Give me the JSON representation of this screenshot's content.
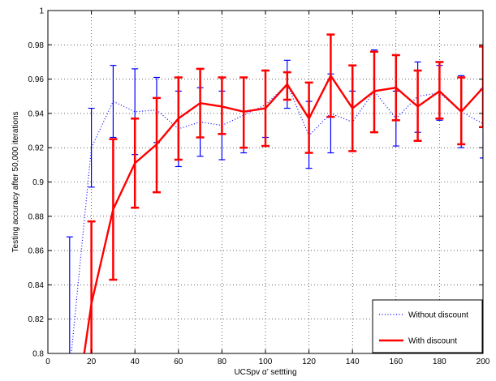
{
  "chart_data": {
    "type": "line",
    "title": "",
    "xlabel": "UCSpv α’ settting",
    "ylabel": "Testing accuracy after 50,000 iterations",
    "xlim": [
      0,
      200
    ],
    "ylim": [
      0.8,
      1.0
    ],
    "xticks": [
      0,
      20,
      40,
      60,
      80,
      100,
      120,
      140,
      160,
      180,
      200
    ],
    "yticks": [
      0.8,
      0.82,
      0.84,
      0.86,
      0.88,
      0.9,
      0.92,
      0.94,
      0.96,
      0.98,
      1.0
    ],
    "ytick_labels": [
      "0.8",
      "0.82",
      "0.84",
      "0.86",
      "0.88",
      "0.9",
      "0.92",
      "0.94",
      "0.96",
      "0.98",
      "1"
    ],
    "grid": true,
    "legend_position": "bottom-right",
    "series": [
      {
        "name": "Without discount",
        "color": "#0000ff",
        "style": "dotted",
        "x": [
          10,
          20,
          30,
          40,
          50,
          60,
          70,
          80,
          90,
          100,
          110,
          120,
          130,
          140,
          150,
          160,
          170,
          180,
          190,
          200
        ],
        "y": [
          0.79,
          0.92,
          0.947,
          0.941,
          0.942,
          0.931,
          0.935,
          0.933,
          0.939,
          0.945,
          0.957,
          0.927,
          0.94,
          0.935,
          0.953,
          0.937,
          0.95,
          0.952,
          0.941,
          0.934
        ],
        "lower": [
          0.79,
          0.897,
          0.926,
          0.916,
          0.923,
          0.909,
          0.915,
          0.913,
          0.917,
          0.926,
          0.943,
          0.908,
          0.917,
          0.918,
          0.929,
          0.921,
          0.929,
          0.936,
          0.92,
          0.914
        ],
        "upper": [
          0.868,
          0.943,
          0.968,
          0.966,
          0.961,
          0.953,
          0.955,
          0.953,
          0.961,
          0.965,
          0.971,
          0.947,
          0.963,
          0.953,
          0.977,
          0.953,
          0.97,
          0.968,
          0.962,
          0.954
        ]
      },
      {
        "name": "With discount",
        "color": "#ff0000",
        "style": "solid",
        "x": [
          15,
          20,
          30,
          40,
          50,
          60,
          70,
          80,
          90,
          100,
          110,
          120,
          130,
          140,
          150,
          160,
          170,
          180,
          190,
          200
        ],
        "y": [
          0.785,
          0.829,
          0.884,
          0.911,
          0.922,
          0.937,
          0.946,
          0.944,
          0.941,
          0.943,
          0.957,
          0.937,
          0.962,
          0.943,
          0.953,
          0.955,
          0.944,
          0.953,
          0.941,
          0.955
        ],
        "lower": [
          0.785,
          0.781,
          0.843,
          0.885,
          0.894,
          0.913,
          0.926,
          0.928,
          0.92,
          0.921,
          0.948,
          0.917,
          0.938,
          0.918,
          0.929,
          0.936,
          0.924,
          0.937,
          0.922,
          0.932
        ],
        "upper": [
          0.785,
          0.877,
          0.925,
          0.937,
          0.949,
          0.961,
          0.966,
          0.961,
          0.961,
          0.965,
          0.964,
          0.958,
          0.986,
          0.968,
          0.976,
          0.974,
          0.965,
          0.97,
          0.961,
          0.979
        ]
      }
    ]
  }
}
